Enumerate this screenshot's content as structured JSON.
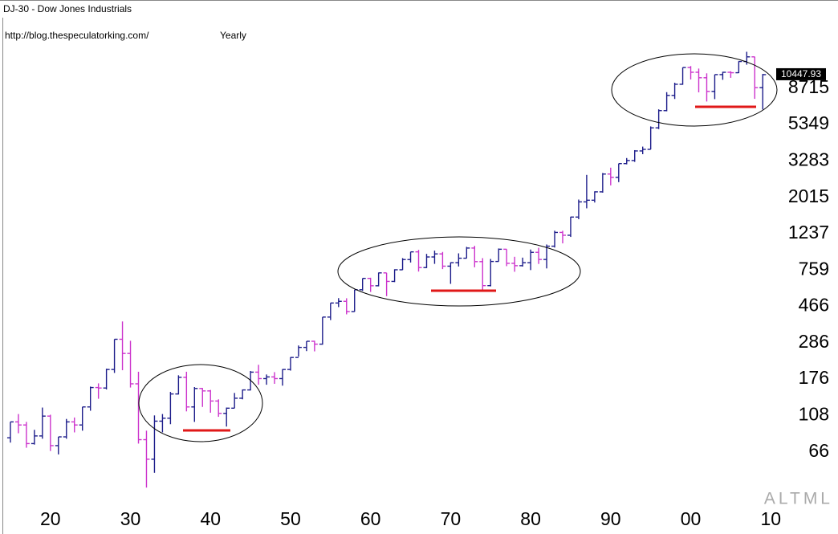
{
  "chart_data": {
    "type": "ohlc",
    "title": "DJ-30 - Dow Jones Industrials",
    "source": "http://blog.thespeculatorking.com/",
    "period": "Yearly",
    "logo": "ALTML",
    "log_scale": true,
    "up_color": "#1c1c8a",
    "down_color": "#cc33cc",
    "xlim": [
      13.7,
      118.4
    ],
    "xticks": [
      20,
      30,
      40,
      50,
      60,
      70,
      80,
      90,
      {
        "value": 100,
        "label": "00"
      },
      {
        "value": 110,
        "label": "10"
      }
    ],
    "ylim": [
      22,
      28440
    ],
    "yticks": [
      66,
      108,
      176,
      286,
      466,
      759,
      1237,
      2015,
      3283,
      5349,
      8715
    ],
    "x": [
      15,
      16,
      17,
      18,
      19,
      20,
      21,
      22,
      23,
      24,
      25,
      26,
      27,
      28,
      29,
      30,
      31,
      32,
      33,
      34,
      35,
      36,
      37,
      38,
      39,
      40,
      41,
      42,
      43,
      44,
      45,
      46,
      47,
      48,
      49,
      50,
      51,
      52,
      53,
      54,
      55,
      56,
      57,
      58,
      59,
      60,
      61,
      62,
      63,
      64,
      65,
      66,
      67,
      68,
      69,
      70,
      71,
      72,
      73,
      74,
      75,
      76,
      77,
      78,
      79,
      80,
      81,
      82,
      83,
      84,
      85,
      86,
      87,
      88,
      89,
      90,
      91,
      92,
      93,
      94,
      95,
      96,
      97,
      98,
      99,
      100,
      101,
      102,
      103,
      104,
      105,
      106,
      107,
      108,
      109
    ],
    "open": [
      80,
      99,
      95,
      74,
      82,
      107,
      72,
      81,
      99,
      95,
      121,
      157,
      156,
      200,
      300,
      248,
      165,
      78,
      60,
      100,
      104,
      144,
      180,
      121,
      155,
      150,
      131,
      111,
      119,
      136,
      152,
      193,
      177,
      181,
      177,
      200,
      235,
      269,
      292,
      281,
      404,
      488,
      499,
      435,
      583,
      679,
      615,
      731,
      652,
      762,
      874,
      969,
      785,
      905,
      943,
      800,
      838,
      890,
      1020,
      850,
      616,
      852,
      1004,
      831,
      805,
      838,
      963,
      875,
      1046,
      1258,
      1211,
      1546,
      1895,
      1938,
      2168,
      2753,
      2633,
      3168,
      3301,
      3754,
      3834,
      5117,
      6448,
      7908,
      9181,
      11497,
      10787,
      10021,
      8342,
      10453,
      10783,
      10718,
      12463,
      13264,
      8776
    ],
    "high": [
      99,
      110,
      99,
      89,
      120,
      109,
      81,
      103,
      105,
      121,
      159,
      166,
      202,
      300,
      381,
      294,
      194,
      88,
      108,
      110,
      148,
      185,
      194,
      158,
      156,
      152,
      134,
      120,
      146,
      153,
      196,
      213,
      187,
      193,
      201,
      236,
      276,
      292,
      294,
      404,
      488,
      521,
      520,
      583,
      679,
      685,
      734,
      731,
      767,
      891,
      969,
      995,
      943,
      985,
      968,
      842,
      950,
      1036,
      1051,
      891,
      881,
      1014,
      1004,
      907,
      897,
      1000,
      1024,
      1070,
      1287,
      1286,
      1553,
      1955,
      2722,
      2183,
      2791,
      2999,
      3168,
      3413,
      3794,
      3978,
      5216,
      6560,
      8259,
      9374,
      11497,
      11723,
      11337,
      10635,
      10454,
      10854,
      10940,
      12510,
      14198,
      13279,
      10548
    ],
    "low": [
      75,
      85,
      70,
      73,
      79,
      67,
      64,
      79,
      86,
      88,
      115,
      135,
      153,
      191,
      198,
      157,
      74,
      41,
      50,
      86,
      96,
      143,
      114,
      99,
      121,
      112,
      106,
      93,
      119,
      134,
      151,
      163,
      163,
      165,
      161,
      197,
      238,
      256,
      255,
      279,
      388,
      462,
      419,
      434,
      574,
      566,
      610,
      535,
      646,
      760,
      840,
      744,
      780,
      825,
      769,
      631,
      797,
      889,
      788,
      577,
      610,
      852,
      800,
      742,
      796,
      759,
      824,
      776,
      1027,
      1086,
      1184,
      1502,
      1738,
      1879,
      2144,
      2365,
      2470,
      3136,
      3241,
      3593,
      3832,
      5032,
      6391,
      7539,
      9120,
      9796,
      8236,
      7286,
      7524,
      9750,
      10012,
      10667,
      11939,
      7552,
      6547
    ],
    "close": [
      99,
      95,
      74,
      82,
      107,
      72,
      81,
      99,
      95,
      121,
      157,
      156,
      200,
      300,
      248,
      165,
      78,
      60,
      100,
      104,
      144,
      180,
      121,
      155,
      150,
      131,
      111,
      119,
      136,
      152,
      193,
      177,
      181,
      177,
      200,
      235,
      269,
      292,
      281,
      404,
      488,
      499,
      435,
      583,
      679,
      615,
      731,
      652,
      762,
      874,
      969,
      785,
      905,
      943,
      800,
      838,
      890,
      1020,
      850,
      616,
      852,
      1004,
      831,
      805,
      838,
      963,
      875,
      1046,
      1258,
      1211,
      1546,
      1895,
      1938,
      2168,
      2753,
      2633,
      3168,
      3301,
      3754,
      3834,
      5117,
      6448,
      7908,
      9181,
      11497,
      10787,
      10021,
      8342,
      10453,
      10783,
      10718,
      12463,
      13264,
      8776,
      10447.93
    ]
  }
}
